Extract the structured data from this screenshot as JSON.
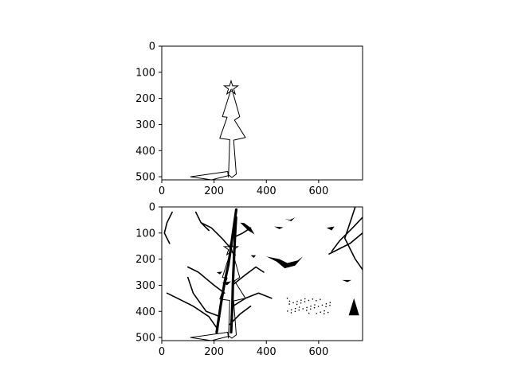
{
  "chart_data": [
    {
      "type": "image",
      "title": "",
      "xlabel": "",
      "ylabel": "",
      "xlim": [
        0,
        768
      ],
      "ylim": [
        512,
        0
      ],
      "xticks": [
        0,
        200,
        400,
        600
      ],
      "yticks": [
        0,
        100,
        200,
        300,
        400,
        500
      ],
      "xtick_labels": [
        "0",
        "200",
        "400",
        "600"
      ],
      "ytick_labels": [
        "0",
        "100",
        "200",
        "300",
        "400",
        "500"
      ],
      "content": "line drawing of a christmas tree with a star on top"
    },
    {
      "type": "image",
      "title": "",
      "xlabel": "",
      "ylabel": "",
      "xlim": [
        0,
        768
      ],
      "ylim": [
        512,
        0
      ],
      "xticks": [
        0,
        200,
        400,
        600
      ],
      "yticks": [
        0,
        100,
        200,
        300,
        400,
        500
      ],
      "xtick_labels": [
        "0",
        "200",
        "400",
        "600"
      ],
      "ytick_labels": [
        "0",
        "100",
        "200",
        "300",
        "400",
        "500"
      ],
      "content": "christmas tree drawing overlaid with black silhouettes of branches, birds and a small tree"
    }
  ],
  "colors": {
    "ink": "#000000",
    "background": "#ffffff"
  }
}
